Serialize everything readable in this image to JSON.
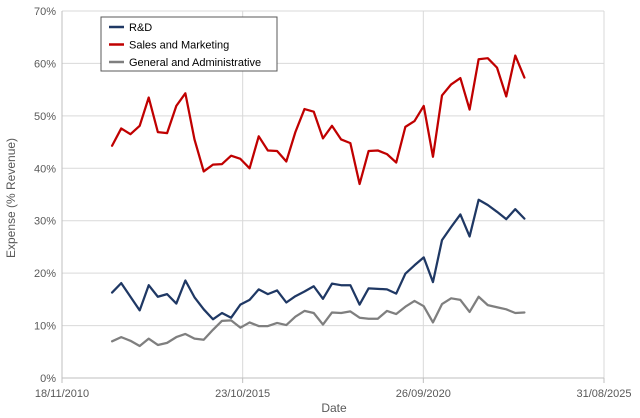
{
  "chart_data": {
    "type": "line",
    "xlabel": "Date",
    "ylabel": "Expense (% Revenue)",
    "ylim": [
      0,
      70
    ],
    "y_ticks": [
      0,
      10,
      20,
      30,
      40,
      50,
      60,
      70
    ],
    "y_tick_format": "percent",
    "xlim": [
      "2010-11-18",
      "2025-08-31"
    ],
    "x_tick_labels": [
      "18/11/2010",
      "23/10/2015",
      "26/09/2020",
      "31/08/2025"
    ],
    "grid": true,
    "legend_position": "top-left",
    "series": [
      {
        "name": "R&D",
        "color": "#1f3864",
        "points": [
          [
            "2012-03-31",
            16.3
          ],
          [
            "2012-06-30",
            18.1
          ],
          [
            "2012-09-30",
            15.5
          ],
          [
            "2012-12-31",
            12.9
          ],
          [
            "2013-03-31",
            17.7
          ],
          [
            "2013-06-30",
            15.5
          ],
          [
            "2013-09-30",
            16.0
          ],
          [
            "2013-12-31",
            14.2
          ],
          [
            "2014-03-31",
            18.6
          ],
          [
            "2014-06-30",
            15.4
          ],
          [
            "2014-09-30",
            13.1
          ],
          [
            "2014-12-31",
            11.2
          ],
          [
            "2015-03-31",
            12.4
          ],
          [
            "2015-06-30",
            11.5
          ],
          [
            "2015-09-30",
            14.0
          ],
          [
            "2015-12-31",
            14.9
          ],
          [
            "2016-03-31",
            16.9
          ],
          [
            "2016-06-30",
            16.0
          ],
          [
            "2016-09-30",
            16.7
          ],
          [
            "2016-12-31",
            14.4
          ],
          [
            "2017-03-31",
            15.6
          ],
          [
            "2017-06-30",
            16.5
          ],
          [
            "2017-09-30",
            17.5
          ],
          [
            "2017-12-31",
            15.1
          ],
          [
            "2018-03-31",
            18.0
          ],
          [
            "2018-06-30",
            17.7
          ],
          [
            "2018-09-30",
            17.7
          ],
          [
            "2018-12-31",
            14.0
          ],
          [
            "2019-03-31",
            17.1
          ],
          [
            "2019-06-30",
            17.0
          ],
          [
            "2019-09-30",
            16.9
          ],
          [
            "2019-12-31",
            16.1
          ],
          [
            "2020-03-31",
            19.9
          ],
          [
            "2020-06-30",
            21.5
          ],
          [
            "2020-09-30",
            23.0
          ],
          [
            "2020-12-31",
            18.3
          ],
          [
            "2021-03-31",
            26.3
          ],
          [
            "2021-06-30",
            28.8
          ],
          [
            "2021-09-30",
            31.2
          ],
          [
            "2021-12-31",
            27.0
          ],
          [
            "2022-03-31",
            34.0
          ],
          [
            "2022-06-30",
            33.0
          ],
          [
            "2022-09-30",
            31.7
          ],
          [
            "2022-12-31",
            30.3
          ],
          [
            "2023-03-31",
            32.2
          ],
          [
            "2023-06-30",
            30.4
          ]
        ]
      },
      {
        "name": "Sales and Marketing",
        "color": "#c00000",
        "points": [
          [
            "2012-03-31",
            44.3
          ],
          [
            "2012-06-30",
            47.6
          ],
          [
            "2012-09-30",
            46.5
          ],
          [
            "2012-12-31",
            48.1
          ],
          [
            "2013-03-31",
            53.5
          ],
          [
            "2013-06-30",
            46.9
          ],
          [
            "2013-09-30",
            46.7
          ],
          [
            "2013-12-31",
            51.9
          ],
          [
            "2014-03-31",
            54.3
          ],
          [
            "2014-06-30",
            45.5
          ],
          [
            "2014-09-30",
            39.4
          ],
          [
            "2014-12-31",
            40.7
          ],
          [
            "2015-03-31",
            40.8
          ],
          [
            "2015-06-30",
            42.4
          ],
          [
            "2015-09-30",
            41.8
          ],
          [
            "2015-12-31",
            40.0
          ],
          [
            "2016-03-31",
            46.1
          ],
          [
            "2016-06-30",
            43.4
          ],
          [
            "2016-09-30",
            43.3
          ],
          [
            "2016-12-31",
            41.3
          ],
          [
            "2017-03-31",
            46.9
          ],
          [
            "2017-06-30",
            51.3
          ],
          [
            "2017-09-30",
            50.8
          ],
          [
            "2017-12-31",
            45.7
          ],
          [
            "2018-03-31",
            48.1
          ],
          [
            "2018-06-30",
            45.5
          ],
          [
            "2018-09-30",
            44.8
          ],
          [
            "2018-12-31",
            37.0
          ],
          [
            "2019-03-31",
            43.3
          ],
          [
            "2019-06-30",
            43.4
          ],
          [
            "2019-09-30",
            42.7
          ],
          [
            "2019-12-31",
            41.1
          ],
          [
            "2020-03-31",
            47.9
          ],
          [
            "2020-06-30",
            49.0
          ],
          [
            "2020-09-30",
            51.9
          ],
          [
            "2020-12-31",
            42.2
          ],
          [
            "2021-03-31",
            53.9
          ],
          [
            "2021-06-30",
            56.0
          ],
          [
            "2021-09-30",
            57.2
          ],
          [
            "2021-12-31",
            51.2
          ],
          [
            "2022-03-31",
            60.8
          ],
          [
            "2022-06-30",
            61.0
          ],
          [
            "2022-09-30",
            59.2
          ],
          [
            "2022-12-31",
            53.7
          ],
          [
            "2023-03-31",
            61.5
          ],
          [
            "2023-06-30",
            57.3
          ]
        ]
      },
      {
        "name": "General and Administrative",
        "color": "#7f7f7f",
        "points": [
          [
            "2012-03-31",
            7.0
          ],
          [
            "2012-06-30",
            7.8
          ],
          [
            "2012-09-30",
            7.1
          ],
          [
            "2012-12-31",
            6.1
          ],
          [
            "2013-03-31",
            7.5
          ],
          [
            "2013-06-30",
            6.3
          ],
          [
            "2013-09-30",
            6.7
          ],
          [
            "2013-12-31",
            7.8
          ],
          [
            "2014-03-31",
            8.4
          ],
          [
            "2014-06-30",
            7.5
          ],
          [
            "2014-09-30",
            7.3
          ],
          [
            "2014-12-31",
            9.2
          ],
          [
            "2015-03-31",
            10.9
          ],
          [
            "2015-06-30",
            11.0
          ],
          [
            "2015-09-30",
            9.6
          ],
          [
            "2015-12-31",
            10.6
          ],
          [
            "2016-03-31",
            9.9
          ],
          [
            "2016-06-30",
            9.9
          ],
          [
            "2016-09-30",
            10.5
          ],
          [
            "2016-12-31",
            10.1
          ],
          [
            "2017-03-31",
            11.7
          ],
          [
            "2017-06-30",
            12.8
          ],
          [
            "2017-09-30",
            12.4
          ],
          [
            "2017-12-31",
            10.2
          ],
          [
            "2018-03-31",
            12.5
          ],
          [
            "2018-06-30",
            12.4
          ],
          [
            "2018-09-30",
            12.7
          ],
          [
            "2018-12-31",
            11.5
          ],
          [
            "2019-03-31",
            11.3
          ],
          [
            "2019-06-30",
            11.3
          ],
          [
            "2019-09-30",
            12.8
          ],
          [
            "2019-12-31",
            12.2
          ],
          [
            "2020-03-31",
            13.6
          ],
          [
            "2020-06-30",
            14.7
          ],
          [
            "2020-09-30",
            13.7
          ],
          [
            "2020-12-31",
            10.6
          ],
          [
            "2021-03-31",
            14.1
          ],
          [
            "2021-06-30",
            15.2
          ],
          [
            "2021-09-30",
            14.9
          ],
          [
            "2021-12-31",
            12.6
          ],
          [
            "2022-03-31",
            15.5
          ],
          [
            "2022-06-30",
            13.9
          ],
          [
            "2022-09-30",
            13.5
          ],
          [
            "2022-12-31",
            13.1
          ],
          [
            "2023-03-31",
            12.4
          ],
          [
            "2023-06-30",
            12.5
          ]
        ]
      }
    ]
  }
}
